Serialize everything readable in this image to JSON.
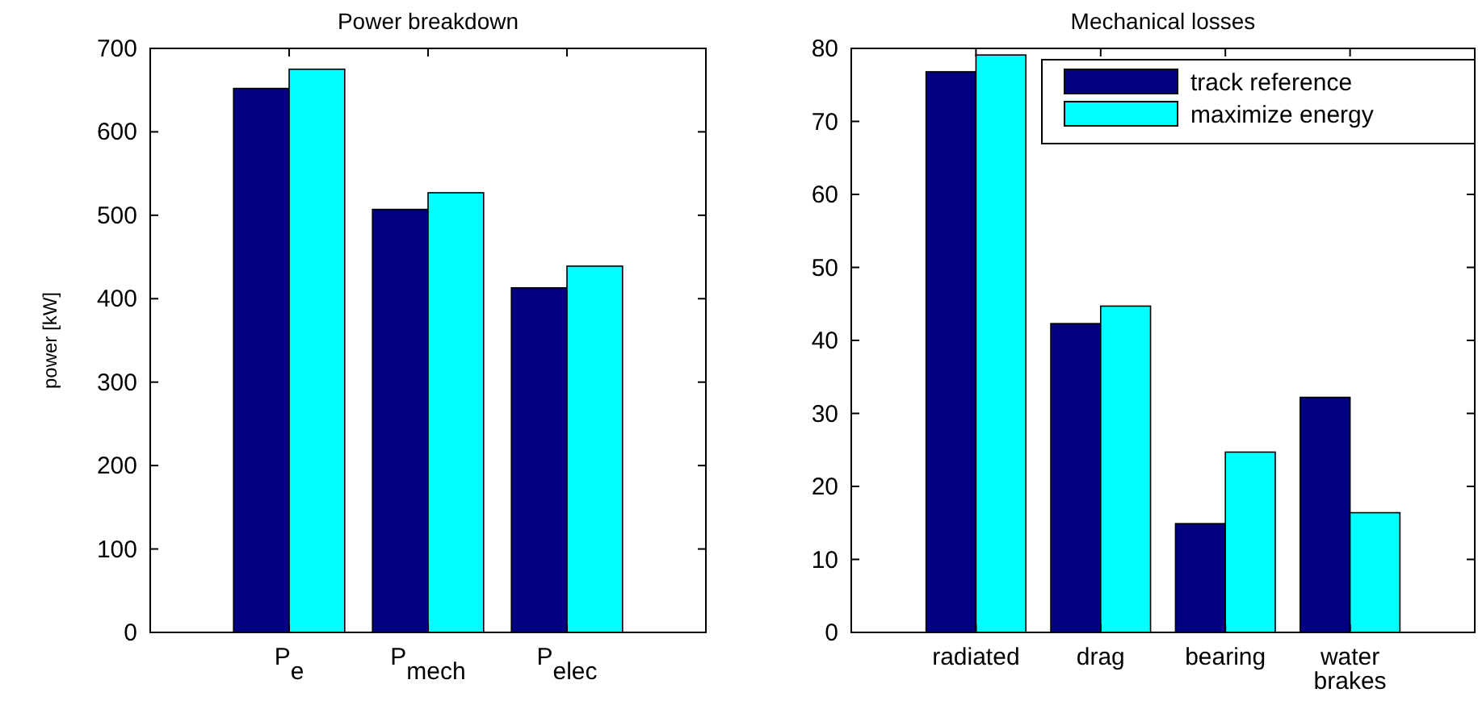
{
  "chart_data": [
    {
      "type": "bar",
      "title": "Power breakdown",
      "ylabel": "power [kW]",
      "categories": [
        "P$_{e}$",
        "P$_{mech}$",
        "P$_{elec}$"
      ],
      "ylim": [
        0,
        700
      ],
      "yticks": [
        0,
        100,
        200,
        300,
        400,
        500,
        600,
        700
      ],
      "series": [
        {
          "color": "#000080",
          "values": [
            652,
            507,
            413
          ]
        },
        {
          "color": "#00ffff",
          "values": [
            675,
            527,
            439
          ]
        }
      ]
    },
    {
      "type": "bar",
      "title": "Mechanical losses",
      "categories": [
        "radiated",
        "drag",
        "bearing",
        "water\nbrakes"
      ],
      "ylim": [
        0,
        80
      ],
      "yticks": [
        0,
        10,
        20,
        30,
        40,
        50,
        60,
        70,
        80
      ],
      "legend": "top right",
      "series": [
        {
          "name": "track reference",
          "color": "#000080",
          "values": [
            76.8,
            42.3,
            14.9,
            32.2
          ]
        },
        {
          "name": "maximize energy",
          "color": "#00ffff",
          "values": [
            79.1,
            44.7,
            24.7,
            16.4
          ]
        }
      ]
    }
  ]
}
